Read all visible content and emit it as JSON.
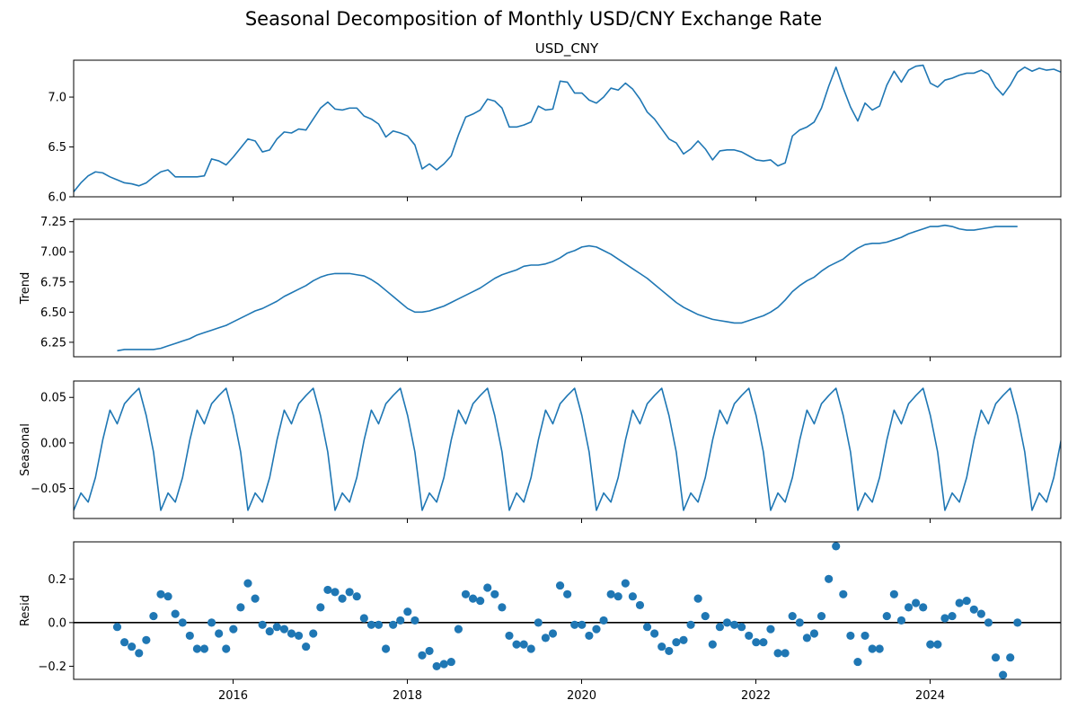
{
  "title": "Seasonal Decomposition of Monthly USD/CNY Exchange Rate",
  "colors": {
    "line": "#1f77b4",
    "zero_line": "#000000",
    "frame": "#000000"
  },
  "chart_data": [
    {
      "type": "line",
      "title": "USD_CNY",
      "ylabel": "",
      "xlim": [
        2014.17,
        2025.5
      ],
      "ylim": [
        6.0,
        7.37
      ],
      "yticks": [
        "6.0",
        "6.5",
        "7.0"
      ],
      "x_start": 2014.17,
      "x_step": 0.08333,
      "values": [
        6.05,
        6.14,
        6.21,
        6.25,
        6.24,
        6.2,
        6.17,
        6.14,
        6.13,
        6.11,
        6.14,
        6.2,
        6.25,
        6.27,
        6.2,
        6.2,
        6.2,
        6.2,
        6.21,
        6.38,
        6.36,
        6.32,
        6.4,
        6.49,
        6.58,
        6.56,
        6.45,
        6.47,
        6.58,
        6.65,
        6.64,
        6.68,
        6.67,
        6.78,
        6.89,
        6.95,
        6.88,
        6.87,
        6.89,
        6.89,
        6.81,
        6.78,
        6.73,
        6.6,
        6.66,
        6.64,
        6.61,
        6.52,
        6.28,
        6.33,
        6.27,
        6.33,
        6.41,
        6.62,
        6.8,
        6.83,
        6.87,
        6.98,
        6.96,
        6.89,
        6.7,
        6.7,
        6.72,
        6.75,
        6.91,
        6.87,
        6.88,
        7.16,
        7.15,
        7.04,
        7.04,
        6.97,
        6.94,
        7.0,
        7.09,
        7.07,
        7.14,
        7.08,
        6.98,
        6.85,
        6.78,
        6.68,
        6.58,
        6.54,
        6.43,
        6.48,
        6.56,
        6.48,
        6.37,
        6.46,
        6.47,
        6.47,
        6.45,
        6.41,
        6.37,
        6.36,
        6.37,
        6.31,
        6.34,
        6.61,
        6.67,
        6.7,
        6.75,
        6.89,
        7.11,
        7.3,
        7.09,
        6.9,
        6.76,
        6.94,
        6.87,
        6.91,
        7.12,
        7.26,
        7.15,
        7.27,
        7.31,
        7.32,
        7.14,
        7.1,
        7.17,
        7.19,
        7.22,
        7.24,
        7.24,
        7.27,
        7.23,
        7.1,
        7.02,
        7.12,
        7.25,
        7.3,
        7.26,
        7.29,
        7.27,
        7.28,
        7.25
      ]
    },
    {
      "type": "line",
      "title": "",
      "ylabel": "Trend",
      "xlim": [
        2014.17,
        2025.5
      ],
      "ylim": [
        6.13,
        7.27
      ],
      "yticks": [
        "6.25",
        "6.50",
        "6.75",
        "7.00",
        "7.25"
      ],
      "x_start": 2014.67,
      "x_step": 0.08333,
      "values": [
        6.18,
        6.19,
        6.19,
        6.19,
        6.19,
        6.19,
        6.2,
        6.22,
        6.24,
        6.26,
        6.28,
        6.31,
        6.33,
        6.35,
        6.37,
        6.39,
        6.42,
        6.45,
        6.48,
        6.51,
        6.53,
        6.56,
        6.59,
        6.63,
        6.66,
        6.69,
        6.72,
        6.76,
        6.79,
        6.81,
        6.82,
        6.82,
        6.82,
        6.81,
        6.8,
        6.77,
        6.73,
        6.68,
        6.63,
        6.58,
        6.53,
        6.5,
        6.5,
        6.51,
        6.53,
        6.55,
        6.58,
        6.61,
        6.64,
        6.67,
        6.7,
        6.74,
        6.78,
        6.81,
        6.83,
        6.85,
        6.88,
        6.89,
        6.89,
        6.9,
        6.92,
        6.95,
        6.99,
        7.01,
        7.04,
        7.05,
        7.04,
        7.01,
        6.98,
        6.94,
        6.9,
        6.86,
        6.82,
        6.78,
        6.73,
        6.68,
        6.63,
        6.58,
        6.54,
        6.51,
        6.48,
        6.46,
        6.44,
        6.43,
        6.42,
        6.41,
        6.41,
        6.43,
        6.45,
        6.47,
        6.5,
        6.54,
        6.6,
        6.67,
        6.72,
        6.76,
        6.79,
        6.84,
        6.88,
        6.91,
        6.94,
        6.99,
        7.03,
        7.06,
        7.07,
        7.07,
        7.08,
        7.1,
        7.12,
        7.15,
        7.17,
        7.19,
        7.21,
        7.21,
        7.22,
        7.21,
        7.19,
        7.18,
        7.18,
        7.19,
        7.2,
        7.21,
        7.21,
        7.21,
        7.21
      ]
    },
    {
      "type": "line",
      "title": "",
      "ylabel": "Seasonal",
      "xlim": [
        2014.17,
        2025.5
      ],
      "ylim": [
        -0.083,
        0.068
      ],
      "yticks": [
        "0.05",
        "0.00",
        "−0.05"
      ],
      "x_start": 2014.17,
      "x_step": 0.08333,
      "pattern": [
        -0.074,
        -0.055,
        -0.065,
        -0.038,
        0.003,
        0.036,
        0.021,
        0.043,
        0.052,
        0.06,
        0.03,
        -0.01
      ],
      "months": 137
    },
    {
      "type": "scatter",
      "title": "",
      "ylabel": "Resid",
      "xlim": [
        2014.17,
        2025.5
      ],
      "ylim": [
        -0.26,
        0.37
      ],
      "yticks": [
        "0.2",
        "0.0",
        "−0.2"
      ],
      "x_start": 2014.67,
      "x_step": 0.08333,
      "values": [
        -0.02,
        -0.09,
        -0.11,
        -0.14,
        -0.08,
        0.03,
        0.13,
        0.12,
        0.04,
        0.0,
        -0.06,
        -0.12,
        -0.12,
        0.0,
        -0.05,
        -0.12,
        -0.03,
        0.07,
        0.18,
        0.11,
        -0.01,
        -0.04,
        -0.02,
        -0.03,
        -0.05,
        -0.06,
        -0.11,
        -0.05,
        0.07,
        0.15,
        0.14,
        0.11,
        0.14,
        0.12,
        0.02,
        -0.01,
        -0.01,
        -0.12,
        -0.01,
        0.01,
        0.05,
        0.01,
        -0.15,
        -0.13,
        -0.2,
        -0.19,
        -0.18,
        -0.03,
        0.13,
        0.11,
        0.1,
        0.16,
        0.13,
        0.07,
        -0.06,
        -0.1,
        -0.1,
        -0.12,
        0.0,
        -0.07,
        -0.05,
        0.17,
        0.13,
        -0.01,
        -0.01,
        -0.06,
        -0.03,
        0.01,
        0.13,
        0.12,
        0.18,
        0.12,
        0.08,
        -0.02,
        -0.05,
        -0.11,
        -0.13,
        -0.09,
        -0.08,
        -0.01,
        0.11,
        0.03,
        -0.1,
        -0.02,
        0.0,
        -0.01,
        -0.02,
        -0.06,
        -0.09,
        -0.09,
        -0.03,
        -0.14,
        -0.14,
        0.03,
        0.0,
        -0.07,
        -0.05,
        0.03,
        0.2,
        0.35,
        0.13,
        -0.06,
        -0.18,
        -0.06,
        -0.12,
        -0.12,
        0.03,
        0.13,
        0.01,
        0.07,
        0.09,
        0.07,
        -0.1,
        -0.1,
        0.02,
        0.03,
        0.09,
        0.1,
        0.06,
        0.04,
        0.0,
        -0.16,
        -0.24,
        -0.16,
        0.0
      ],
      "zero_line": 0
    }
  ],
  "x_ticks": [
    "2016",
    "2018",
    "2020",
    "2022",
    "2024"
  ],
  "x_tick_values": [
    2016,
    2018,
    2020,
    2022,
    2024
  ]
}
